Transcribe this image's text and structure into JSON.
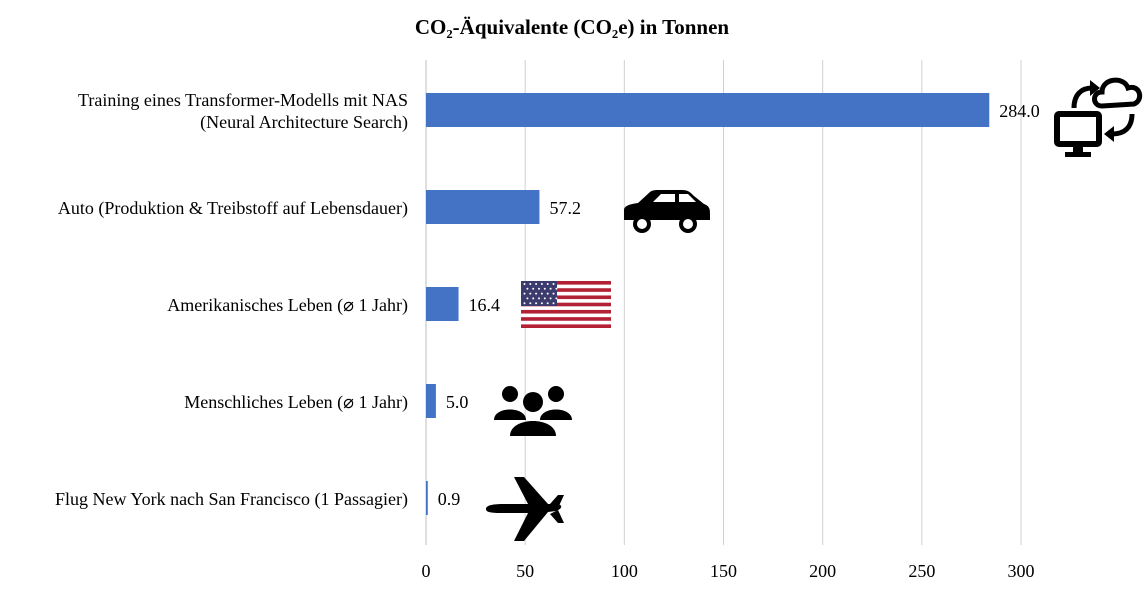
{
  "chart_data": {
    "type": "bar",
    "orientation": "horizontal",
    "title": "CO₂-Äquivalente (CO₂e) in Tonnen",
    "categories": [
      [
        "Training eines Transformer-Modells mit NAS",
        "(Neural Architecture Search)"
      ],
      [
        "Auto (Produktion & Treibstoff auf Lebensdauer)"
      ],
      [
        "Amerikanisches Leben (⌀ 1 Jahr)"
      ],
      [
        "Menschliches Leben (⌀ 1 Jahr)"
      ],
      [
        "Flug New York nach San Francisco (1 Passagier)"
      ]
    ],
    "values": [
      284.0,
      57.2,
      16.4,
      5.0,
      0.9
    ],
    "value_labels": [
      "284.0",
      "57.2",
      "16.4",
      "5.0",
      "0.9"
    ],
    "xlim": [
      0,
      300
    ],
    "xticks": [
      0,
      50,
      100,
      150,
      200,
      250,
      300
    ],
    "grid": true,
    "bar_color": "#4472C4",
    "grid_color": "#d0d0d0",
    "icons": [
      "cloud-computer-icon",
      "car-icon",
      "us-flag-icon",
      "people-icon",
      "airplane-icon"
    ]
  }
}
